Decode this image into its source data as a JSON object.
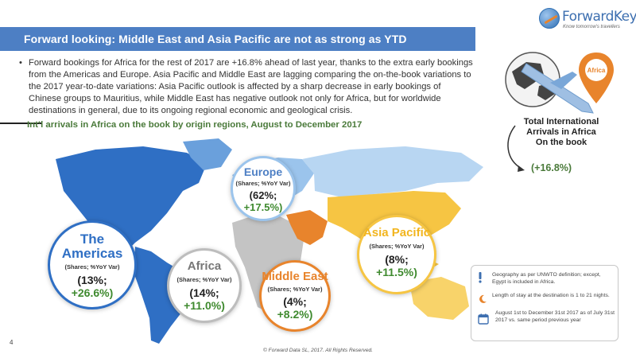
{
  "logo": {
    "name": "ForwardKeys",
    "tagline": "Know tomorrow's travellers"
  },
  "banner": {
    "title": "Forward looking: Middle East and Asia Pacific are not as strong as YTD"
  },
  "bullet": {
    "marker": "•",
    "text": "Forward bookings for Africa for the rest of 2017 are +16.8% ahead of last year, thanks to the extra early bookings from the Americas and Europe. Asia Pacific and Middle East are lagging comparing the on-the-book variations to the 2017 year-to-date variations: Asia Pacific outlook is affected by a sharp decrease in early bookings of Chinese groups to Mauritius, while Middle East has negative outlook not only for Africa, but for worldwide destinations in general, due to its ongoing regional economic and geological crisis."
  },
  "subtitle": "Int’l arrivals in Africa on the book by origin regions, August to December 2017",
  "regions": {
    "europe": {
      "name": "Europe",
      "meta": "(Shares; %YoY Var)",
      "share": "(62%;",
      "var": "+17.5%)",
      "color": "#9bc4ec"
    },
    "americas": {
      "name_line1": "The",
      "name_line2": "Americas",
      "meta": "(Shares; %YoY Var)",
      "share": "(13%;",
      "var": "+26.6%)",
      "color": "#2f6fc4"
    },
    "africa": {
      "name": "Africa",
      "meta": "(Shares; %YoY Var)",
      "share": "(14%;",
      "var": "+11.0%)",
      "color": "#bdbdbd"
    },
    "middle_east": {
      "name": "Middle East",
      "meta": "(Shares; %YoY Var)",
      "share": "(4%;",
      "var": "+8.2%)",
      "color": "#e8842c"
    },
    "asia_pacific": {
      "name": "Asia Pacific",
      "meta": "(Shares; %YoY Var)",
      "share": "(8%;",
      "var": "+11.5%)",
      "color": "#f6c543"
    }
  },
  "kpi": {
    "pin_label": "Africa",
    "label_line1": "Total International",
    "label_line2": "Arrivals in Africa",
    "label_line3": "On the book",
    "value": "(+16.8%)"
  },
  "notes": {
    "geography": "Geography as per UNWTO definition; except, Egypt is included in Africa.",
    "stay": "Length of stay at the destination is 1 to 21 nights.",
    "period": "August 1st to December 31st 2017 as of July 31st 2017 vs. same period previous year"
  },
  "page_number": "4",
  "footer": "© Forward Data SL, 2017. All Rights Reserved."
}
